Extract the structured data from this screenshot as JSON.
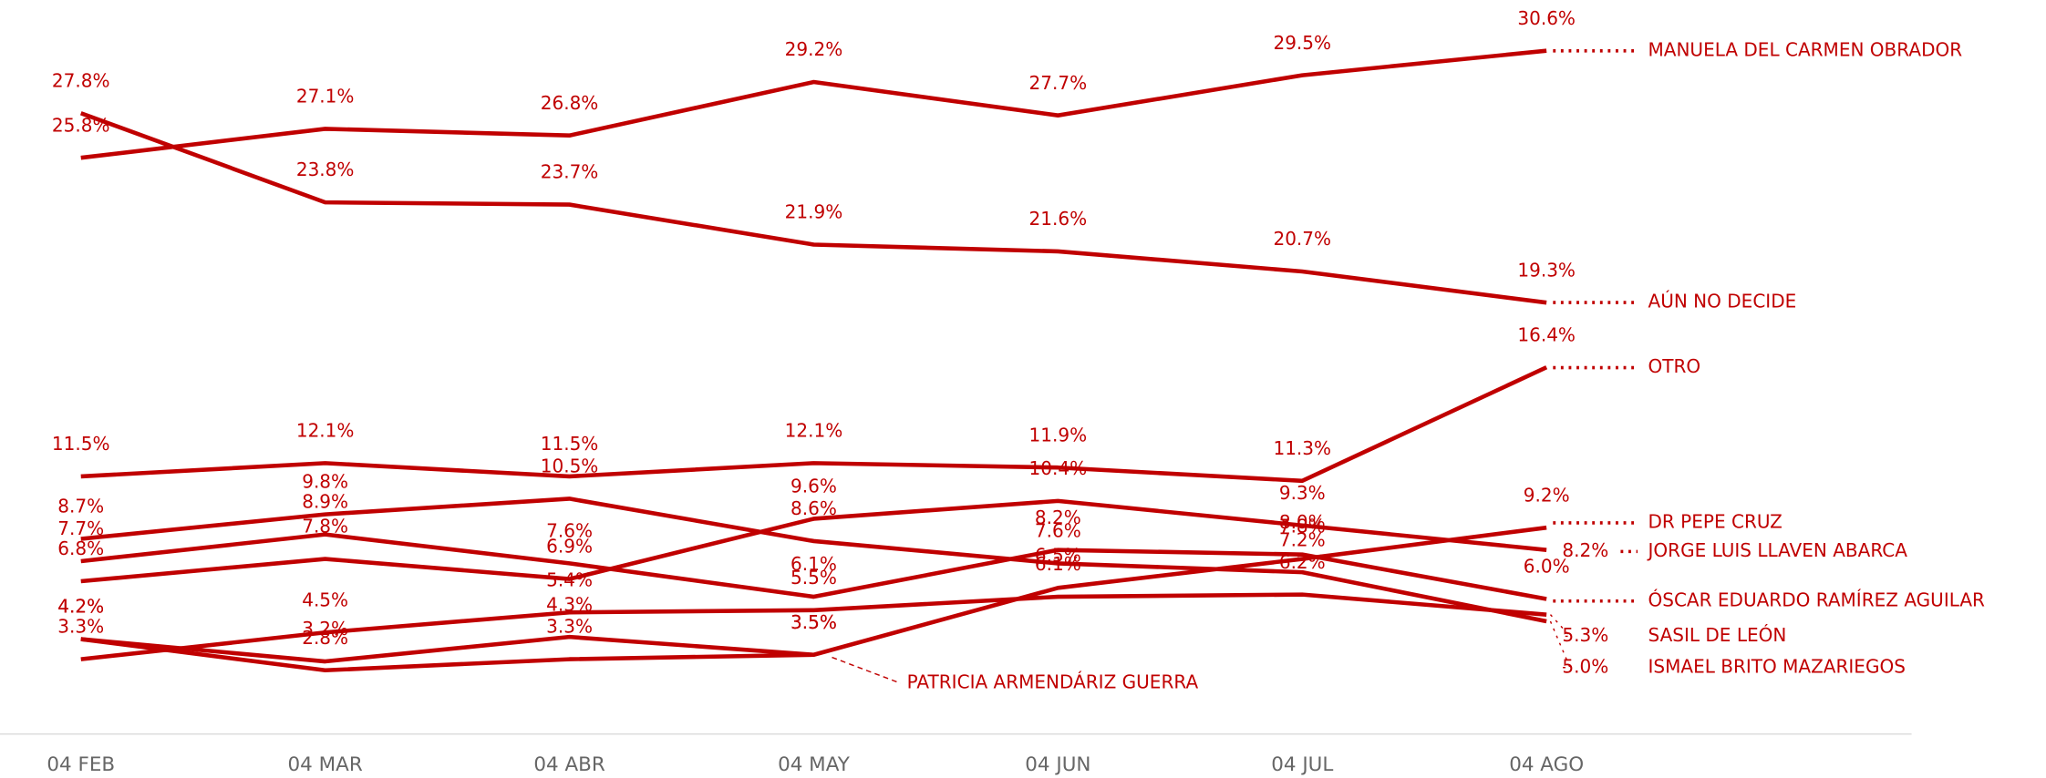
{
  "chart_data": {
    "type": "line",
    "categories": [
      "04 FEB",
      "04 MAR",
      "04 ABR",
      "04 MAY",
      "04 JUN",
      "04 JUL",
      "04 AGO"
    ],
    "ylim": [
      0,
      32
    ],
    "series": [
      {
        "name": "MANUELA DEL CARMEN OBRADOR",
        "color": "#c00000",
        "values": [
          25.8,
          27.1,
          26.8,
          29.2,
          27.7,
          29.5,
          30.6
        ],
        "value_labels": [
          "25.8%",
          "27.1%",
          "26.8%",
          "29.2%",
          "27.7%",
          "29.5%",
          "30.6%"
        ]
      },
      {
        "name": "AÚN NO DECIDE",
        "color": "#c00000",
        "values": [
          27.8,
          23.8,
          23.7,
          21.9,
          21.6,
          20.7,
          19.3
        ],
        "value_labels": [
          "27.8%",
          "23.8%",
          "23.7%",
          "21.9%",
          "21.6%",
          "20.7%",
          "19.3%"
        ]
      },
      {
        "name": "OTRO",
        "color": "#c00000",
        "values": [
          11.5,
          12.1,
          11.5,
          12.1,
          11.9,
          11.3,
          16.4
        ],
        "value_labels": [
          "11.5%",
          "12.1%",
          "11.5%",
          "12.1%",
          "11.9%",
          "11.3%",
          "16.4%"
        ]
      },
      {
        "name": "DR PEPE CRUZ",
        "color": "#c00000",
        "values": [
          4.2,
          2.8,
          3.3,
          3.5,
          6.5,
          7.8,
          9.2
        ],
        "value_labels": [
          "4.2%",
          "2.8%",
          "3.3%",
          "3.5%",
          "6.5%",
          "7.8%",
          "9.2%"
        ]
      },
      {
        "name": "JORGE LUIS LLAVEN ABARCA",
        "color": "#c00000",
        "values": [
          6.8,
          7.8,
          6.9,
          9.6,
          10.4,
          9.3,
          8.2
        ],
        "value_labels": [
          "6.8%",
          "7.8%",
          "6.9%",
          "9.6%",
          "10.4%",
          "9.3%",
          "8.2%"
        ]
      },
      {
        "name": "ÓSCAR EDUARDO RAMÍREZ AGUILAR",
        "color": "#c00000",
        "values": [
          7.7,
          8.9,
          7.6,
          6.1,
          8.2,
          8.0,
          6.0
        ],
        "value_labels": [
          "7.7%",
          "8.9%",
          "7.6%",
          "6.1%",
          "8.2%",
          "8.0%",
          "6.0%"
        ]
      },
      {
        "name": "SASIL DE LEÓN",
        "color": "#c00000",
        "values": [
          3.3,
          4.5,
          5.4,
          5.5,
          6.1,
          6.2,
          5.3
        ],
        "value_labels": [
          "3.3%",
          "4.5%",
          "5.4%",
          "5.5%",
          "6.1%",
          "6.2%",
          "5.3%"
        ]
      },
      {
        "name": "ISMAEL BRITO MAZARIEGOS",
        "color": "#c00000",
        "values": [
          8.7,
          9.8,
          10.5,
          8.6,
          7.6,
          7.2,
          5.0
        ],
        "value_labels": [
          "8.7%",
          "9.8%",
          "10.5%",
          "8.6%",
          "7.6%",
          "7.2%",
          "5.0%"
        ]
      },
      {
        "name": "PATRICIA ARMENDÁRIZ GUERRA",
        "color": "#c00000",
        "values": [
          4.2,
          3.2,
          4.3,
          3.5,
          null,
          null,
          null
        ],
        "value_labels": [
          "4.2%",
          "3.2%",
          "4.3%",
          "3.5%",
          null,
          null,
          null
        ]
      }
    ]
  }
}
